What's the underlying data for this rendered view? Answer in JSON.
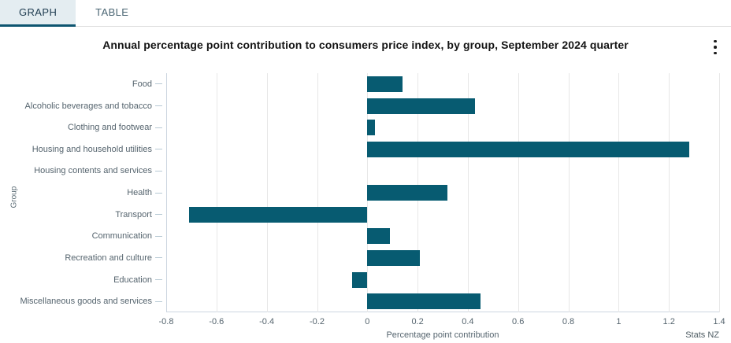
{
  "tabs": {
    "graph_label": "GRAPH",
    "table_label": "TABLE"
  },
  "header": {
    "menu_icon": "kebab-menu-icon"
  },
  "chart_data": {
    "type": "bar",
    "orientation": "horizontal",
    "title": "Annual percentage point contribution to consumers price index, by group, September 2024 quarter",
    "categories": [
      "Food",
      "Alcoholic beverages and tobacco",
      "Clothing and footwear",
      "Housing and household utilities",
      "Housing contents and services",
      "Health",
      "Transport",
      "Communication",
      "Recreation and culture",
      "Education",
      "Miscellaneous goods and services"
    ],
    "values": [
      0.14,
      0.43,
      0.03,
      1.28,
      0,
      0.32,
      -0.71,
      0.09,
      0.21,
      -0.06,
      0.45
    ],
    "xlabel": "Percentage point contribution",
    "ylabel": "Group",
    "xlim": [
      -0.8,
      1.4
    ],
    "xtick_values": [
      -0.8,
      -0.6,
      -0.4,
      -0.2,
      0,
      0.2,
      0.4,
      0.6,
      0.8,
      1,
      1.2,
      1.4
    ],
    "xtick_labels": [
      "-0.8",
      "-0.6",
      "-0.4",
      "-0.2",
      "0",
      "0.2",
      "0.4",
      "0.6",
      "0.8",
      "1",
      "1.2",
      "1.4"
    ],
    "bar_color": "#075b71",
    "grid": true,
    "source": "Stats NZ"
  }
}
